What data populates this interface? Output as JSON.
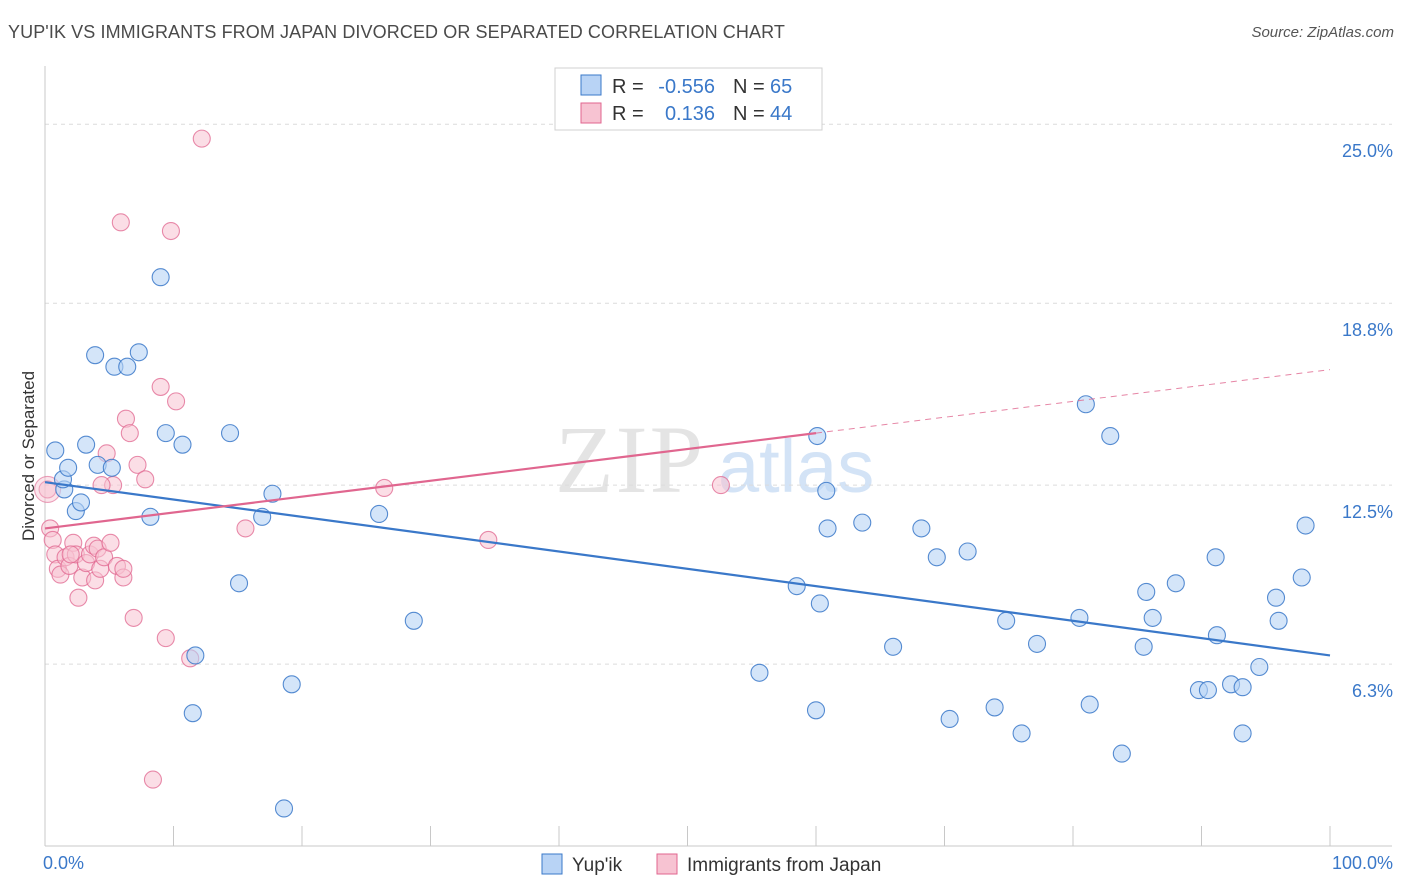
{
  "title": "YUP'IK VS IMMIGRANTS FROM JAPAN DIVORCED OR SEPARATED CORRELATION CHART",
  "source": "Source: ZipAtlas.com",
  "watermark": {
    "zip": "ZIP",
    "atlas": "atlas"
  },
  "colors": {
    "blue": "#3a78c9",
    "blue_fill": "#b8d3f5",
    "pink": "#e0668f",
    "pink_fill": "#f7c3d2",
    "grid": "#dcdcdc"
  },
  "legend": {
    "row1": {
      "r_label": "R =",
      "r_value": "-0.556",
      "n_label": "N =",
      "n_value": "65"
    },
    "row2": {
      "r_label": "R =",
      "r_value": "0.136",
      "n_label": "N =",
      "n_value": "44"
    }
  },
  "chart_data": {
    "type": "scatter",
    "title": "YUP'IK VS IMMIGRANTS FROM JAPAN DIVORCED OR SEPARATED CORRELATION CHART",
    "xlabel": "",
    "ylabel": "Divorced or Separated",
    "xlim": [
      0,
      100
    ],
    "ylim": [
      0,
      26.6
    ],
    "x_tick_labels": [
      "0.0%",
      "100.0%"
    ],
    "y_ticks": [
      6.3,
      12.5,
      18.8,
      25.0
    ],
    "y_tick_labels": [
      "6.3%",
      "12.5%",
      "18.8%",
      "25.0%"
    ],
    "grid": true,
    "series": [
      {
        "name": "Yup'ik",
        "color": "#3a78c9",
        "r": -0.556,
        "n": 65,
        "trend": {
          "x0": 0,
          "y0": 12.6,
          "x1": 100,
          "y1": 6.6
        },
        "points": [
          [
            1.5,
            12.35
          ],
          [
            0.8,
            13.7
          ],
          [
            1.4,
            12.7
          ],
          [
            1.8,
            13.1
          ],
          [
            2.4,
            11.6
          ],
          [
            2.8,
            11.9
          ],
          [
            3.2,
            13.9
          ],
          [
            4.1,
            13.2
          ],
          [
            3.9,
            17.0
          ],
          [
            5.2,
            13.1
          ],
          [
            5.4,
            16.6
          ],
          [
            6.4,
            16.6
          ],
          [
            7.3,
            17.1
          ],
          [
            9.0,
            19.7
          ],
          [
            8.2,
            11.4
          ],
          [
            9.4,
            14.3
          ],
          [
            10.7,
            13.9
          ],
          [
            11.7,
            6.6
          ],
          [
            11.5,
            4.6
          ],
          [
            14.4,
            14.3
          ],
          [
            15.1,
            9.1
          ],
          [
            16.9,
            11.4
          ],
          [
            17.7,
            12.2
          ],
          [
            18.6,
            1.3
          ],
          [
            19.2,
            5.6
          ],
          [
            26.0,
            11.5
          ],
          [
            28.7,
            7.8
          ],
          [
            55.6,
            6.0
          ],
          [
            58.5,
            9.0
          ],
          [
            60.0,
            4.7
          ],
          [
            60.1,
            14.2
          ],
          [
            60.8,
            12.3
          ],
          [
            60.9,
            11.0
          ],
          [
            60.3,
            8.4
          ],
          [
            63.6,
            11.2
          ],
          [
            66.0,
            6.9
          ],
          [
            68.2,
            11.0
          ],
          [
            69.4,
            10.0
          ],
          [
            70.4,
            4.4
          ],
          [
            71.8,
            10.2
          ],
          [
            73.9,
            4.8
          ],
          [
            74.8,
            7.8
          ],
          [
            76.0,
            3.9
          ],
          [
            77.2,
            7.0
          ],
          [
            80.5,
            7.9
          ],
          [
            81.0,
            15.3
          ],
          [
            81.3,
            4.9
          ],
          [
            83.8,
            3.2
          ],
          [
            85.7,
            8.8
          ],
          [
            86.2,
            7.9
          ],
          [
            88.0,
            9.1
          ],
          [
            89.8,
            5.4
          ],
          [
            90.5,
            5.4
          ],
          [
            91.1,
            10.0
          ],
          [
            91.2,
            7.3
          ],
          [
            92.3,
            5.6
          ],
          [
            93.2,
            5.5
          ],
          [
            93.2,
            3.9
          ],
          [
            94.5,
            6.2
          ],
          [
            96.0,
            7.8
          ],
          [
            95.8,
            8.6
          ],
          [
            97.8,
            9.3
          ],
          [
            98.1,
            11.1
          ],
          [
            82.9,
            14.2
          ],
          [
            85.5,
            6.9
          ]
        ]
      },
      {
        "name": "Immigrants from Japan",
        "color": "#e0668f",
        "r": 0.136,
        "n": 44,
        "trend": {
          "x0": 0,
          "y0": 11.0,
          "x1": 60,
          "y1": 14.3,
          "dash_x1": 100,
          "dash_y1": 16.5
        },
        "points": [
          [
            0.2,
            12.35
          ],
          [
            0.4,
            11.0
          ],
          [
            0.6,
            10.6
          ],
          [
            0.8,
            10.1
          ],
          [
            1.0,
            9.6
          ],
          [
            1.2,
            9.4
          ],
          [
            1.6,
            10.0
          ],
          [
            1.9,
            9.7
          ],
          [
            2.2,
            10.5
          ],
          [
            2.4,
            10.1
          ],
          [
            2.6,
            8.6
          ],
          [
            2.9,
            9.3
          ],
          [
            3.2,
            9.8
          ],
          [
            3.5,
            10.1
          ],
          [
            3.8,
            10.4
          ],
          [
            3.9,
            9.2
          ],
          [
            4.1,
            10.3
          ],
          [
            4.3,
            9.6
          ],
          [
            4.6,
            10.0
          ],
          [
            4.8,
            13.6
          ],
          [
            5.1,
            10.5
          ],
          [
            5.3,
            12.5
          ],
          [
            5.6,
            9.7
          ],
          [
            5.9,
            21.6
          ],
          [
            6.1,
            9.3
          ],
          [
            6.3,
            14.8
          ],
          [
            6.6,
            14.3
          ],
          [
            6.9,
            7.9
          ],
          [
            7.2,
            13.2
          ],
          [
            7.8,
            12.7
          ],
          [
            8.4,
            2.3
          ],
          [
            9.0,
            15.9
          ],
          [
            9.4,
            7.2
          ],
          [
            9.8,
            21.3
          ],
          [
            10.2,
            15.4
          ],
          [
            11.3,
            6.5
          ],
          [
            12.2,
            24.5
          ],
          [
            15.6,
            11.0
          ],
          [
            26.4,
            12.4
          ],
          [
            34.5,
            10.6
          ],
          [
            52.6,
            12.5
          ],
          [
            4.4,
            12.5
          ],
          [
            2.0,
            10.1
          ],
          [
            6.1,
            9.6
          ]
        ]
      }
    ],
    "legend_position": "top-center"
  },
  "bottom_legend": [
    "Yup'ik",
    "Immigrants from Japan"
  ]
}
